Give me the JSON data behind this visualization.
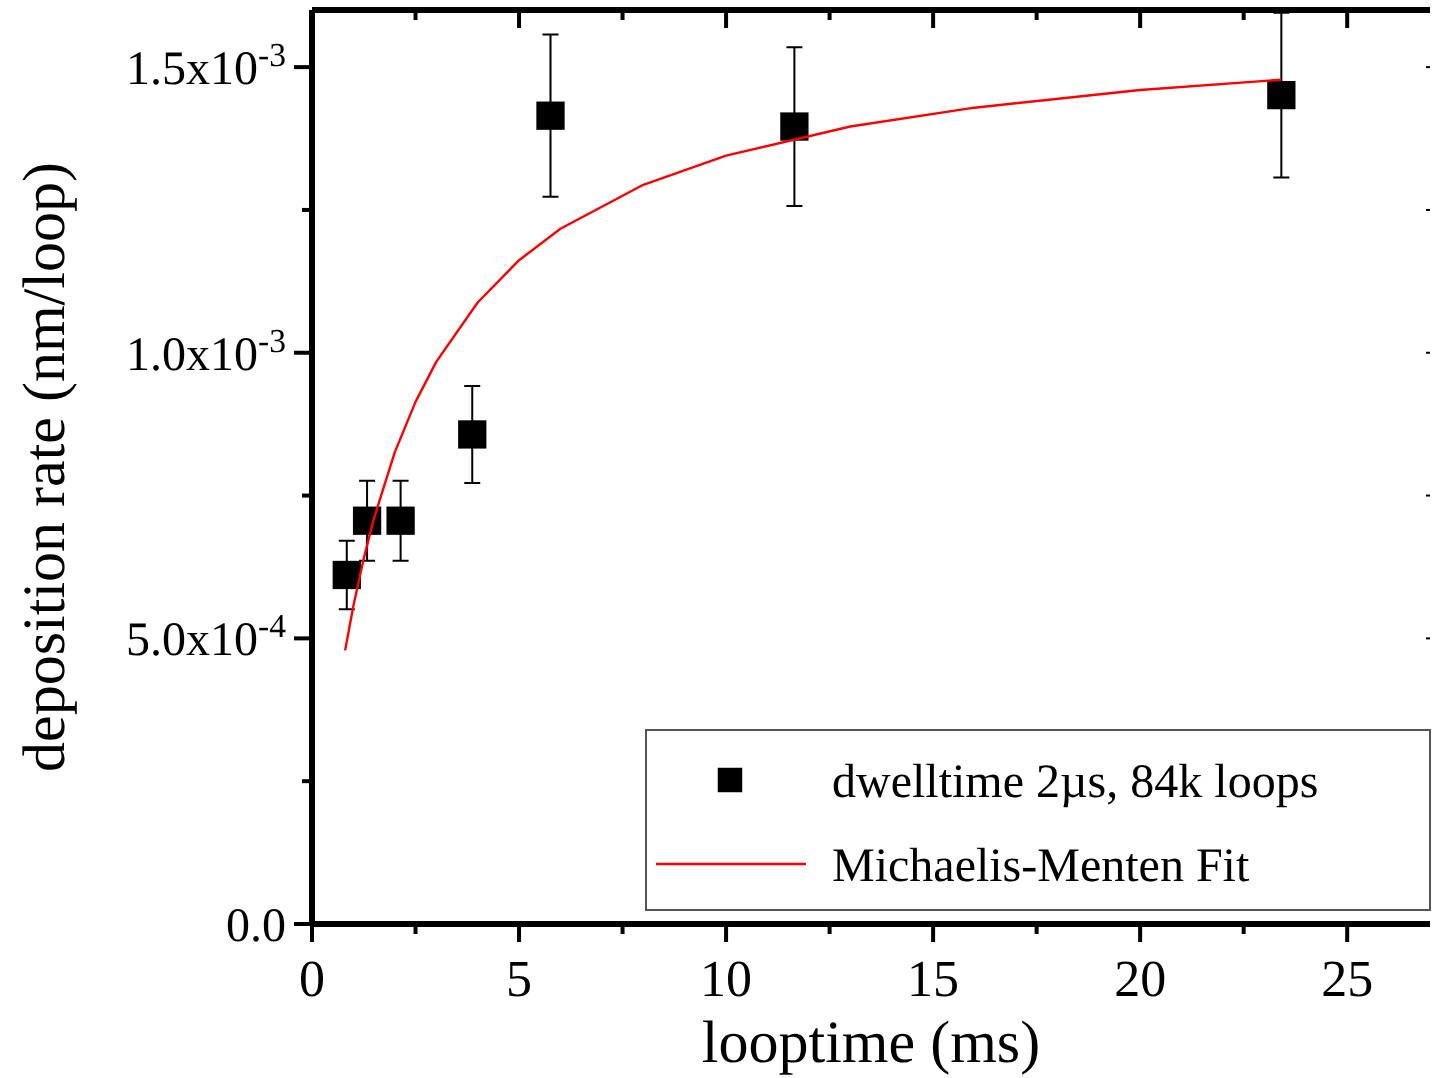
{
  "chart_data": {
    "type": "scatter",
    "xlabel": "looptime (ms)",
    "ylabel": "deposition rate (nm/loop)",
    "xlim": [
      0,
      27
    ],
    "ylim": [
      0,
      0.0016
    ],
    "xticks": [
      0,
      {
        "value": 2.5,
        "label": null
      },
      5,
      {
        "value": 7.5,
        "label": null
      },
      10,
      {
        "value": 12.5,
        "label": null
      },
      15,
      {
        "value": 17.5,
        "label": null
      },
      20,
      {
        "value": 22.5,
        "label": null
      },
      25
    ],
    "yticks": [
      {
        "value": 0,
        "label": "0.0"
      },
      {
        "value": 0.00025,
        "label": null
      },
      {
        "value": 0.0005,
        "label": "5.0x10$^{-4}$"
      },
      {
        "value": 0.00075,
        "label": null
      },
      {
        "value": 0.001,
        "label": "1.0x10$^{-3}$"
      },
      {
        "value": 0.00125,
        "label": null
      },
      {
        "value": 0.0015,
        "label": "1.5x10$^{-3}$"
      }
    ],
    "legend": "bottom right",
    "grid": false,
    "series": [
      {
        "name": "dwelltime 2µs, 84k loops",
        "marker": "square",
        "color": "#000000",
        "x": [
          0.84,
          1.33,
          2.14,
          3.87,
          5.76,
          11.65,
          23.41
        ],
        "values": [
          0.000611,
          0.000706,
          0.000706,
          0.000857,
          0.001415,
          0.001396,
          0.001451
        ],
        "errors": [
          6e-05,
          7e-05,
          7e-05,
          8.5e-05,
          0.000142,
          0.000139,
          0.000144
        ]
      },
      {
        "name": "Michaelis-Menten Fit",
        "type": "line",
        "marker": "none",
        "line_style": "solid",
        "color": "#ff0000",
        "x": [
          0.8,
          1,
          1.25,
          1.5,
          2,
          2.5,
          3,
          4,
          5,
          6,
          8,
          10,
          13,
          16,
          20,
          23.4
        ],
        "values": [
          0.000479,
          0.000557,
          0.00064,
          0.000711,
          0.000826,
          0.000914,
          0.000984,
          0.001088,
          0.001162,
          0.001217,
          0.001294,
          0.001345,
          0.001396,
          0.001429,
          0.00146,
          0.001478
        ]
      }
    ]
  }
}
